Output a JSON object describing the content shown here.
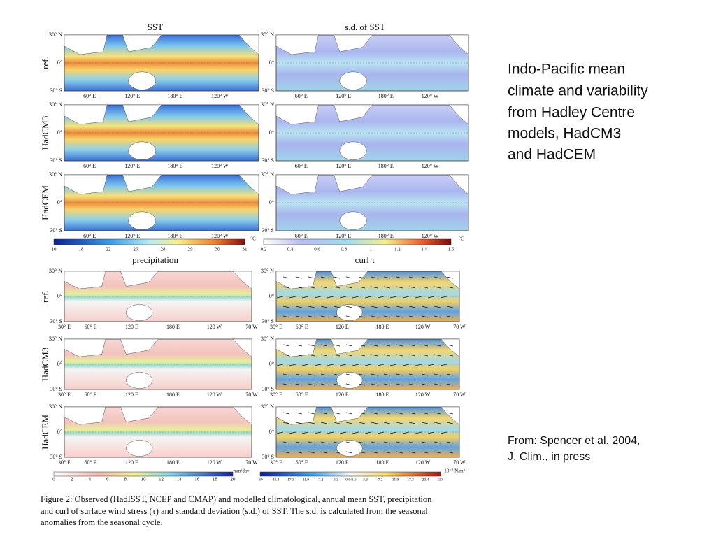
{
  "figure": {
    "top_titles": [
      "SST",
      "s.d. of SST"
    ],
    "bottom_titles": [
      "precipitation",
      "curl τ"
    ],
    "row_labels": [
      "ref.",
      "HadCM3",
      "HadCEM"
    ],
    "lat_labels": [
      "30° N",
      "0°",
      "30° S"
    ],
    "lon_labels_top": [
      "60° E",
      "120° E",
      "180° E",
      "120° W"
    ],
    "lon_labels_bottom": [
      "30° E",
      "60° E",
      "120 E",
      "180 E",
      "120 W",
      "70 W"
    ],
    "colorbars": [
      {
        "ticks": [
          "10",
          "18",
          "22",
          "26",
          "28",
          "29",
          "30",
          "31"
        ],
        "unit": "°C"
      },
      {
        "ticks": [
          "0.2",
          "0.4",
          "0.6",
          "0.8",
          "1",
          "1.2",
          "1.4",
          "1.6"
        ],
        "unit": "°C"
      },
      {
        "ticks": [
          "0",
          "2",
          "4",
          "6",
          "8",
          "10",
          "12",
          "14",
          "16",
          "18",
          "20"
        ],
        "unit": "mm/day"
      },
      {
        "ticks": [
          "-30",
          "-23.4",
          "-17.3",
          "-11.9",
          "-7.2",
          "-3.3",
          "-0.6/0.6",
          "3.3",
          "7.2",
          "11.9",
          "17.3",
          "23.4",
          "30"
        ],
        "unit": "10⁻⁸ N/m³"
      }
    ],
    "caption": [
      "Figure 2: Observed (HadISST, NCEP and CMAP) and modelled climatological, annual mean SST, precipitation",
      "and curl of surface wind stress (τ) and standard deviation (s.d.) of SST. The s.d. is calculated from the seasonal",
      "anomalies from the seasonal cycle."
    ]
  },
  "side": {
    "title": [
      "Indo-Pacific mean",
      "climate and variability",
      "from Hadley Centre",
      "models, HadCM3",
      "and HadCEM"
    ],
    "source": [
      "From: Spencer et al. 2004,",
      "J. Clim., in press"
    ]
  }
}
